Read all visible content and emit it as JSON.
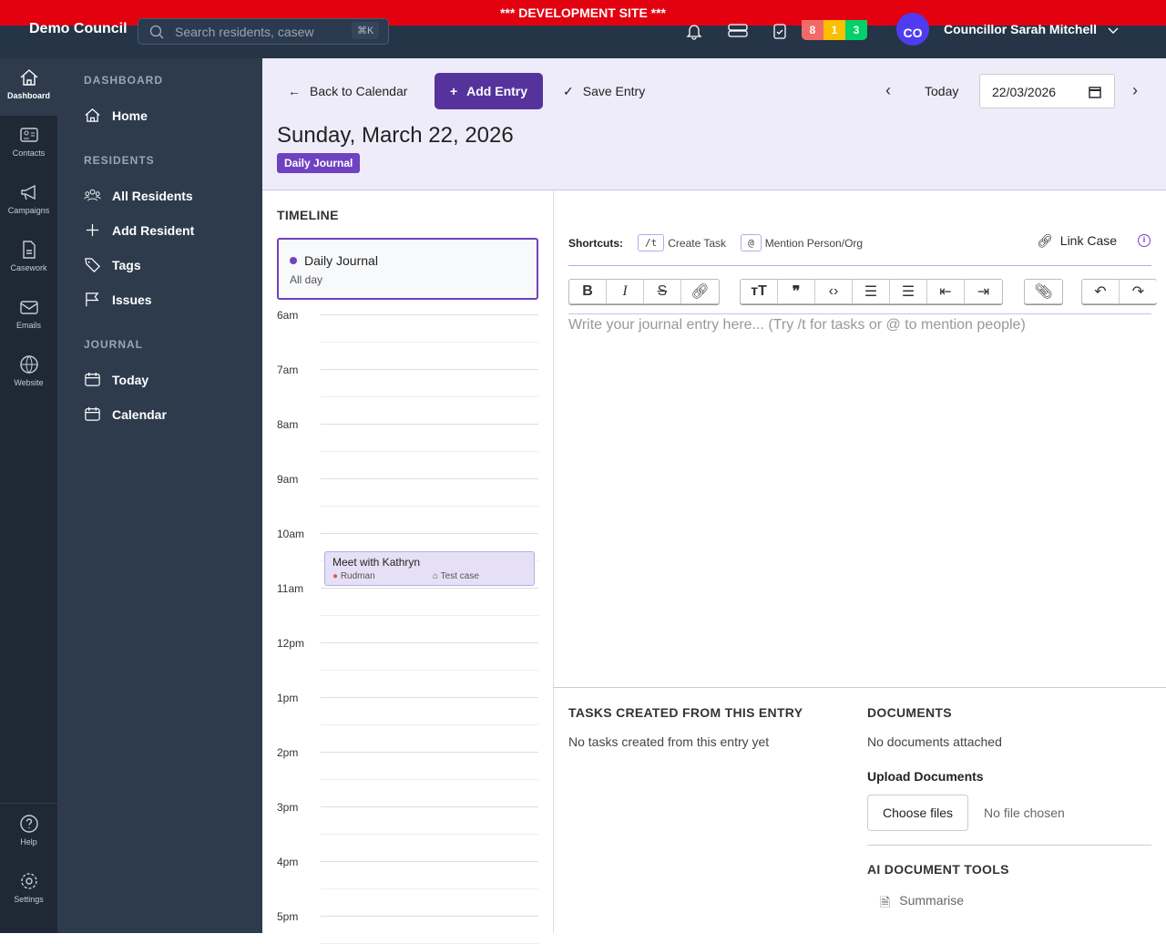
{
  "dev_banner": "*** DEVELOPMENT SITE ***",
  "topbar": {
    "org": "Demo Council",
    "search_placeholder": "Search residents, casew",
    "search_shortcut": "⌘K",
    "badges": [
      {
        "count": "8",
        "color": "#f06a6a"
      },
      {
        "count": "1",
        "color": "#fbbf00"
      },
      {
        "count": "3",
        "color": "#00d16a"
      }
    ],
    "avatar_initials": "CO",
    "avatar_color": "#4f3cf0",
    "user_name": "Councillor Sarah Mitchell"
  },
  "rail": [
    {
      "label": "Dashboard",
      "icon": "home-icon"
    },
    {
      "label": "Contacts",
      "icon": "contact-card-icon"
    },
    {
      "label": "Campaigns",
      "icon": "megaphone-icon"
    },
    {
      "label": "Casework",
      "icon": "document-icon"
    },
    {
      "label": "Emails",
      "icon": "mail-icon"
    },
    {
      "label": "Website",
      "icon": "globe-icon"
    },
    {
      "label": "Help",
      "icon": "help-icon"
    },
    {
      "label": "Settings",
      "icon": "gear-icon"
    }
  ],
  "sidebar": {
    "dashboard_title": "DASHBOARD",
    "home": "Home",
    "residents_title": "RESIDENTS",
    "all_residents": "All Residents",
    "add_resident": "Add Resident",
    "tags": "Tags",
    "issues": "Issues",
    "journal_title": "JOURNAL",
    "today": "Today",
    "calendar": "Calendar"
  },
  "header": {
    "back": "Back to Calendar",
    "add_entry": "Add Entry",
    "save_entry": "Save Entry",
    "today": "Today",
    "date_value": "22/03/2026",
    "title": "Sunday, March 22, 2026",
    "badge": "Daily Journal",
    "accent": "#56339c"
  },
  "timeline": {
    "title": "TIMELINE",
    "allday_event": "Daily Journal",
    "allday_label": "All day",
    "hours": [
      "6am",
      "7am",
      "8am",
      "9am",
      "10am",
      "11am",
      "12pm",
      "1pm",
      "2pm",
      "3pm",
      "4pm",
      "5pm"
    ],
    "event": {
      "title": "Meet with Kathryn",
      "location": "Rudman",
      "case": "Test case"
    }
  },
  "editor": {
    "shortcuts_label": "Shortcuts:",
    "shortcut1_key": "/t",
    "shortcut1_label": "Create Task",
    "shortcut2_key": "@",
    "shortcut2_label": "Mention Person/Org",
    "link_case": "Link Case",
    "placeholder": "Write your journal entry here... (Try /t for tasks or @ to mention people)"
  },
  "tasks": {
    "title": "TASKS CREATED FROM THIS ENTRY",
    "empty": "No tasks created from this entry yet"
  },
  "documents": {
    "title": "DOCUMENTS",
    "empty": "No documents attached",
    "upload_title": "Upload Documents",
    "choose": "Choose files",
    "no_file": "No file chosen",
    "ai_title": "AI DOCUMENT TOOLS",
    "summarise": "Summarise"
  }
}
